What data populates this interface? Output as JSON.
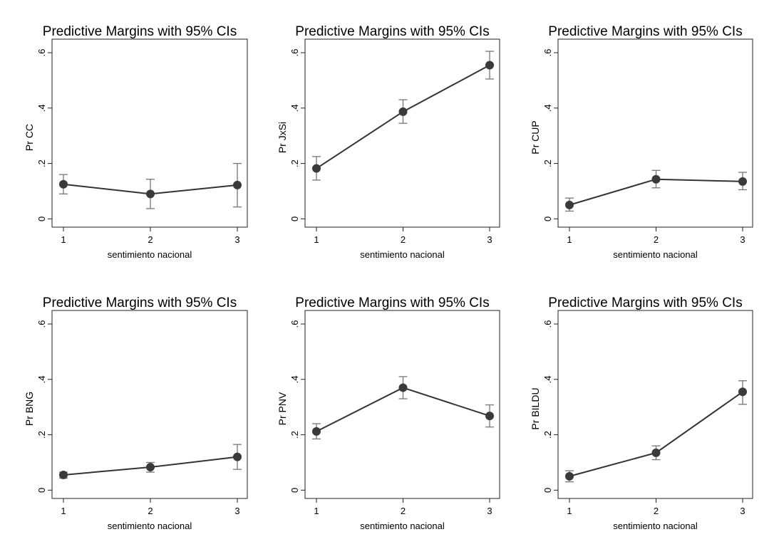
{
  "chart_data": [
    {
      "type": "line",
      "title": "Predictive Margins with 95% CIs",
      "xlabel": "sentimiento nacional",
      "ylabel": "Pr CC",
      "x": [
        1,
        2,
        3
      ],
      "x_tick_labels": [
        "1",
        "2",
        "3"
      ],
      "y_tick_labels": [
        "0",
        ".2",
        ".4",
        ".6"
      ],
      "y_ticks": [
        0,
        0.2,
        0.4,
        0.6
      ],
      "ylim": [
        -0.03,
        0.6
      ],
      "series": [
        {
          "name": "Pr CC",
          "values": [
            0.125,
            0.09,
            0.122
          ],
          "ci_low": [
            0.09,
            0.037,
            0.043
          ],
          "ci_high": [
            0.16,
            0.143,
            0.2
          ]
        }
      ]
    },
    {
      "type": "line",
      "title": "Predictive Margins with 95% CIs",
      "xlabel": "sentimiento nacional",
      "ylabel": "Pr JxSi",
      "x": [
        1,
        2,
        3
      ],
      "x_tick_labels": [
        "1",
        "2",
        "3"
      ],
      "y_tick_labels": [
        "0",
        ".2",
        ".4",
        ".6"
      ],
      "y_ticks": [
        0,
        0.2,
        0.4,
        0.6
      ],
      "ylim": [
        -0.03,
        0.6
      ],
      "series": [
        {
          "name": "Pr JxSi",
          "values": [
            0.182,
            0.387,
            0.555
          ],
          "ci_low": [
            0.14,
            0.345,
            0.505
          ],
          "ci_high": [
            0.225,
            0.43,
            0.605
          ]
        }
      ]
    },
    {
      "type": "line",
      "title": "Predictive Margins with 95% CIs",
      "xlabel": "sentimiento nacional",
      "ylabel": "Pr CUP",
      "x": [
        1,
        2,
        3
      ],
      "x_tick_labels": [
        "1",
        "2",
        "3"
      ],
      "y_tick_labels": [
        "0",
        ".2",
        ".4",
        ".6"
      ],
      "y_ticks": [
        0,
        0.2,
        0.4,
        0.6
      ],
      "ylim": [
        -0.03,
        0.6
      ],
      "series": [
        {
          "name": "Pr CUP",
          "values": [
            0.05,
            0.143,
            0.135
          ],
          "ci_low": [
            0.028,
            0.112,
            0.105
          ],
          "ci_high": [
            0.075,
            0.175,
            0.168
          ]
        }
      ]
    },
    {
      "type": "line",
      "title": "Predictive Margins with 95% CIs",
      "xlabel": "sentimiento nacional",
      "ylabel": "Pr BNG",
      "x": [
        1,
        2,
        3
      ],
      "x_tick_labels": [
        "1",
        "2",
        "3"
      ],
      "y_tick_labels": [
        "0",
        ".2",
        ".4",
        ".6"
      ],
      "y_ticks": [
        0,
        0.2,
        0.4,
        0.6
      ],
      "ylim": [
        -0.03,
        0.6
      ],
      "series": [
        {
          "name": "Pr BNG",
          "values": [
            0.055,
            0.083,
            0.12
          ],
          "ci_low": [
            0.043,
            0.065,
            0.075
          ],
          "ci_high": [
            0.065,
            0.1,
            0.165
          ]
        }
      ]
    },
    {
      "type": "line",
      "title": "Predictive Margins with 95% CIs",
      "xlabel": "sentimiento nacional",
      "ylabel": "Pr PNV",
      "x": [
        1,
        2,
        3
      ],
      "x_tick_labels": [
        "1",
        "2",
        "3"
      ],
      "y_tick_labels": [
        "0",
        ".2",
        ".4",
        ".6"
      ],
      "y_ticks": [
        0,
        0.2,
        0.4,
        0.6
      ],
      "ylim": [
        -0.03,
        0.6
      ],
      "series": [
        {
          "name": "Pr PNV",
          "values": [
            0.212,
            0.37,
            0.268
          ],
          "ci_low": [
            0.185,
            0.33,
            0.228
          ],
          "ci_high": [
            0.24,
            0.41,
            0.308
          ]
        }
      ]
    },
    {
      "type": "line",
      "title": "Predictive Margins with 95% CIs",
      "xlabel": "sentimiento nacional",
      "ylabel": "Pr BILDU",
      "x": [
        1,
        2,
        3
      ],
      "x_tick_labels": [
        "1",
        "2",
        "3"
      ],
      "y_tick_labels": [
        "0",
        ".2",
        ".4",
        ".6"
      ],
      "y_ticks": [
        0,
        0.2,
        0.4,
        0.6
      ],
      "ylim": [
        -0.03,
        0.6
      ],
      "series": [
        {
          "name": "Pr BILDU",
          "values": [
            0.05,
            0.135,
            0.355
          ],
          "ci_low": [
            0.03,
            0.11,
            0.31
          ],
          "ci_high": [
            0.07,
            0.16,
            0.395
          ]
        }
      ]
    }
  ]
}
